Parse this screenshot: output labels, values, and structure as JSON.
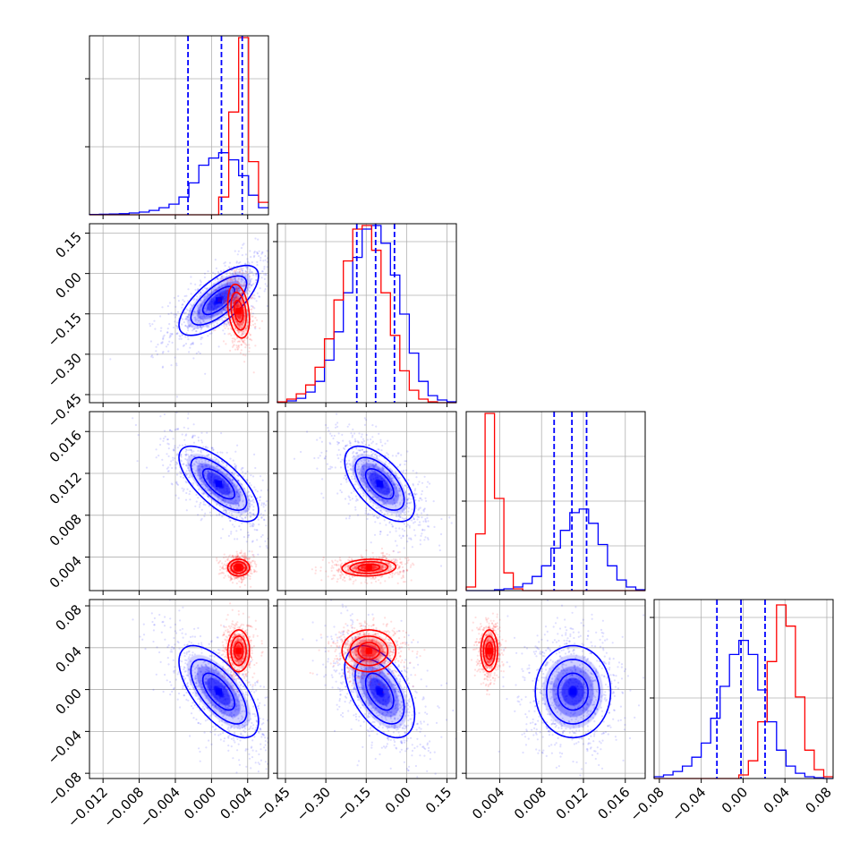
{
  "colors": {
    "series_a": "#0000ff",
    "series_b": "#ff0000",
    "grid": "#b0b0b0"
  },
  "chart_data": {
    "type": "corner",
    "grid": true,
    "parameters": 4,
    "series": [
      {
        "color": "#0000ff",
        "quantile_lines": [
          [
            -0.0026,
            0.0011,
            0.0034
          ],
          [
            -0.185,
            -0.115,
            -0.045
          ],
          [
            0.0092,
            0.0109,
            0.0123
          ],
          [
            -0.025,
            -0.002,
            0.021
          ]
        ],
        "means": [
          0.0008,
          -0.1,
          0.011,
          -0.002
        ],
        "sds": [
          0.0022,
          0.065,
          0.0018,
          0.022
        ],
        "correlations": {
          "0-1": 0.7,
          "0-2": -0.7,
          "0-3": -0.65,
          "1-2": -0.6,
          "1-3": -0.5,
          "2-3": 0.0
        }
      },
      {
        "color": "#ff0000",
        "means": [
          0.003,
          -0.14,
          0.003,
          0.037
        ],
        "sds": [
          0.0006,
          0.05,
          0.0004,
          0.01
        ],
        "correlations": {
          "0-1": -0.3,
          "0-2": 0.0,
          "0-3": 0.0,
          "1-2": 0.1,
          "1-3": 0.0,
          "2-3": 0.0
        }
      }
    ],
    "histograms": [
      {
        "edges": [
          -0.0135,
          -0.0124,
          -0.0113,
          -0.0102,
          -0.0091,
          -0.008,
          -0.0069,
          -0.0058,
          -0.0047,
          -0.0036,
          -0.0025,
          -0.0014,
          -0.0003,
          0.0008,
          0.0019,
          0.003,
          0.0041,
          0.0052,
          0.0063
        ],
        "series": [
          {
            "color": "#0000ff",
            "counts": [
              0.002,
              0.003,
              0.004,
              0.006,
              0.01,
              0.015,
              0.025,
              0.04,
              0.06,
              0.1,
              0.18,
              0.28,
              0.32,
              0.35,
              0.31,
              0.22,
              0.11,
              0.04
            ]
          },
          {
            "color": "#ff0000",
            "counts": [
              0,
              0,
              0,
              0,
              0,
              0,
              0,
              0,
              0,
              0,
              0,
              0,
              0,
              0.1,
              0.58,
              1.0,
              0.3,
              0.07
            ]
          }
        ]
      },
      {
        "edges": [
          -0.48,
          -0.445,
          -0.41,
          -0.375,
          -0.34,
          -0.305,
          -0.27,
          -0.235,
          -0.2,
          -0.165,
          -0.13,
          -0.095,
          -0.06,
          -0.025,
          0.01,
          0.045,
          0.08,
          0.115,
          0.15,
          0.185
        ],
        "series": [
          {
            "color": "#0000ff",
            "counts": [
              0.002,
              0.01,
              0.025,
              0.06,
              0.12,
              0.24,
              0.4,
              0.62,
              0.82,
              0.98,
              1.0,
              0.9,
              0.72,
              0.5,
              0.28,
              0.12,
              0.04,
              0.015,
              0.005
            ]
          },
          {
            "color": "#ff0000",
            "counts": [
              0.004,
              0.02,
              0.05,
              0.1,
              0.2,
              0.36,
              0.58,
              0.8,
              0.98,
              1.0,
              0.86,
              0.62,
              0.38,
              0.18,
              0.07,
              0.02,
              0.005,
              0,
              0
            ]
          }
        ]
      },
      {
        "edges": [
          0.0008,
          0.0017,
          0.0026,
          0.0035,
          0.0044,
          0.0053,
          0.0062,
          0.0071,
          0.008,
          0.0089,
          0.0098,
          0.0107,
          0.0116,
          0.0125,
          0.0134,
          0.0143,
          0.0152,
          0.0161,
          0.017,
          0.0179
        ],
        "series": [
          {
            "color": "#0000ff",
            "counts": [
              0,
              0,
              0,
              0.005,
              0.01,
              0.02,
              0.04,
              0.08,
              0.14,
              0.24,
              0.34,
              0.44,
              0.46,
              0.38,
              0.26,
              0.14,
              0.06,
              0.02,
              0.005
            ]
          },
          {
            "color": "#ff0000",
            "counts": [
              0.02,
              0.32,
              1.0,
              0.52,
              0.1,
              0.01,
              0,
              0,
              0,
              0,
              0,
              0,
              0,
              0,
              0,
              0,
              0,
              0,
              0
            ]
          }
        ]
      },
      {
        "edges": [
          -0.085,
          -0.076,
          -0.067,
          -0.058,
          -0.049,
          -0.04,
          -0.031,
          -0.022,
          -0.013,
          -0.004,
          0.005,
          0.014,
          0.023,
          0.032,
          0.041,
          0.05,
          0.059,
          0.068,
          0.077,
          0.086
        ],
        "series": [
          {
            "color": "#0000ff",
            "counts": [
              0.01,
              0.02,
              0.04,
              0.07,
              0.12,
              0.2,
              0.34,
              0.52,
              0.7,
              0.78,
              0.7,
              0.5,
              0.32,
              0.16,
              0.07,
              0.03,
              0.01,
              0.004,
              0
            ]
          },
          {
            "color": "#ff0000",
            "counts": [
              0,
              0,
              0,
              0,
              0,
              0,
              0,
              0,
              0,
              0.02,
              0.1,
              0.32,
              0.66,
              0.98,
              0.86,
              0.46,
              0.16,
              0.05,
              0.01
            ]
          }
        ]
      }
    ],
    "axes": [
      {
        "range": [
          -0.0135,
          0.0063
        ],
        "ticks": [
          -0.012,
          -0.008,
          -0.004,
          0.0,
          0.004
        ],
        "tick_labels": [
          "−0.012",
          "−0.008",
          "−0.004",
          "0.000",
          "0.004"
        ]
      },
      {
        "range": [
          -0.48,
          0.185
        ],
        "ticks": [
          -0.45,
          -0.3,
          -0.15,
          0.0,
          0.15
        ],
        "tick_labels": [
          "−0.45",
          "−0.30",
          "−0.15",
          "0.00",
          "0.15"
        ]
      },
      {
        "range": [
          0.0008,
          0.0179
        ],
        "ticks": [
          0.004,
          0.008,
          0.012,
          0.016
        ],
        "tick_labels": [
          "0.004",
          "0.008",
          "0.012",
          "0.016"
        ]
      },
      {
        "range": [
          -0.085,
          0.086
        ],
        "ticks": [
          -0.08,
          -0.04,
          0.0,
          0.04,
          0.08
        ],
        "tick_labels": [
          "−0.08",
          "−0.04",
          "0.00",
          "0.04",
          "0.08"
        ]
      }
    ],
    "diag_y_ticks": [
      [
        0.38,
        0.76
      ],
      [
        0.3,
        0.6,
        0.9
      ],
      [
        0.25,
        0.5,
        0.75
      ],
      [
        0.45,
        0.9
      ]
    ]
  }
}
